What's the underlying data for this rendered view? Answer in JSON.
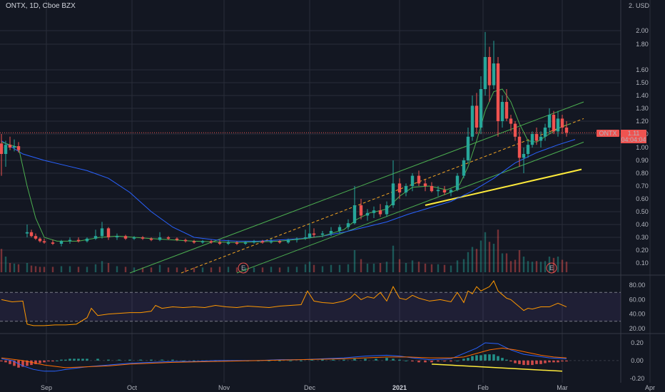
{
  "header": {
    "symbol_title": "ONTX, 1D, Cboe BZX",
    "currency": "2. USD"
  },
  "price_tag": {
    "symbol": "ONTX",
    "value": "1.11",
    "countdown": "04:04:04"
  },
  "event_markers": [
    "E",
    "E"
  ],
  "colors": {
    "background": "#131722",
    "grid": "#2a2e39",
    "up_candle": "#26a69a",
    "down_candle": "#ef5350",
    "channel": "#4caf50",
    "support_line": "#ffeb3b",
    "ma_long": "#2962ff",
    "ma_short": "#4caf50",
    "rsi_line": "#ff9800",
    "rsi_band": "#7e57c2"
  },
  "chart_data": [
    {
      "type": "candlestick",
      "name": "price",
      "y_ticks": [
        "0.10",
        "0.20",
        "0.30",
        "0.40",
        "0.50",
        "0.60",
        "0.70",
        "0.80",
        "0.90",
        "1.00",
        "1.10",
        "1.20",
        "1.30",
        "1.40",
        "1.50",
        "1.60",
        "1.80",
        "2.00"
      ],
      "x_ticks": [
        "Sep",
        "Oct",
        "Nov",
        "Dec",
        "2021",
        "Feb",
        "Mar",
        "Apr"
      ],
      "x_range": [
        0,
        290
      ],
      "x_tick_positions": [
        21,
        61,
        104,
        144,
        186,
        225,
        262,
        303
      ],
      "ohlc": [
        [
          0,
          1.03,
          1.1,
          0.78,
          0.95
        ],
        [
          2,
          0.95,
          1.05,
          0.85,
          1.02
        ],
        [
          4,
          1.02,
          1.08,
          0.98,
          1.0
        ],
        [
          6,
          1.0,
          1.06,
          0.97,
          1.01
        ],
        [
          8,
          1.01,
          1.04,
          0.96,
          0.98
        ],
        [
          12,
          0.33,
          0.4,
          0.3,
          0.34
        ],
        [
          14,
          0.34,
          0.36,
          0.3,
          0.31
        ],
        [
          16,
          0.31,
          0.33,
          0.28,
          0.29
        ],
        [
          18,
          0.29,
          0.3,
          0.26,
          0.27
        ],
        [
          20,
          0.27,
          0.29,
          0.25,
          0.26
        ],
        [
          24,
          0.26,
          0.28,
          0.24,
          0.25
        ],
        [
          28,
          0.25,
          0.28,
          0.23,
          0.27
        ],
        [
          32,
          0.27,
          0.3,
          0.25,
          0.28
        ],
        [
          36,
          0.28,
          0.3,
          0.26,
          0.27
        ],
        [
          40,
          0.27,
          0.3,
          0.26,
          0.29
        ],
        [
          44,
          0.29,
          0.36,
          0.28,
          0.31
        ],
        [
          47,
          0.31,
          0.42,
          0.29,
          0.37
        ],
        [
          50,
          0.37,
          0.38,
          0.28,
          0.3
        ],
        [
          54,
          0.3,
          0.33,
          0.28,
          0.31
        ],
        [
          58,
          0.31,
          0.32,
          0.28,
          0.29
        ],
        [
          62,
          0.29,
          0.31,
          0.28,
          0.3
        ],
        [
          66,
          0.3,
          0.31,
          0.28,
          0.29
        ],
        [
          70,
          0.29,
          0.3,
          0.27,
          0.28
        ],
        [
          74,
          0.28,
          0.34,
          0.27,
          0.3
        ],
        [
          78,
          0.3,
          0.31,
          0.28,
          0.29
        ],
        [
          82,
          0.29,
          0.3,
          0.27,
          0.28
        ],
        [
          86,
          0.28,
          0.29,
          0.26,
          0.27
        ],
        [
          90,
          0.27,
          0.28,
          0.25,
          0.26
        ],
        [
          94,
          0.26,
          0.28,
          0.25,
          0.27
        ],
        [
          98,
          0.27,
          0.28,
          0.25,
          0.26
        ],
        [
          102,
          0.26,
          0.28,
          0.24,
          0.25
        ],
        [
          106,
          0.25,
          0.28,
          0.24,
          0.26
        ],
        [
          110,
          0.26,
          0.27,
          0.24,
          0.25
        ],
        [
          114,
          0.25,
          0.27,
          0.24,
          0.26
        ],
        [
          118,
          0.26,
          0.28,
          0.25,
          0.27
        ],
        [
          122,
          0.27,
          0.28,
          0.25,
          0.26
        ],
        [
          126,
          0.26,
          0.29,
          0.25,
          0.27
        ],
        [
          130,
          0.27,
          0.28,
          0.25,
          0.26
        ],
        [
          134,
          0.26,
          0.29,
          0.25,
          0.28
        ],
        [
          138,
          0.28,
          0.3,
          0.26,
          0.29
        ],
        [
          142,
          0.29,
          0.36,
          0.28,
          0.3
        ],
        [
          144,
          0.3,
          0.41,
          0.29,
          0.33
        ],
        [
          146,
          0.33,
          0.37,
          0.3,
          0.32
        ],
        [
          150,
          0.32,
          0.35,
          0.3,
          0.33
        ],
        [
          154,
          0.33,
          0.38,
          0.31,
          0.35
        ],
        [
          158,
          0.35,
          0.4,
          0.33,
          0.38
        ],
        [
          162,
          0.38,
          0.44,
          0.36,
          0.41
        ],
        [
          165,
          0.41,
          0.7,
          0.4,
          0.55
        ],
        [
          168,
          0.55,
          0.6,
          0.44,
          0.47
        ],
        [
          171,
          0.47,
          0.52,
          0.43,
          0.49
        ],
        [
          174,
          0.49,
          0.54,
          0.45,
          0.51
        ],
        [
          177,
          0.51,
          0.56,
          0.46,
          0.48
        ],
        [
          180,
          0.48,
          0.58,
          0.46,
          0.55
        ],
        [
          183,
          0.55,
          0.9,
          0.53,
          0.72
        ],
        [
          186,
          0.72,
          0.76,
          0.6,
          0.65
        ],
        [
          189,
          0.65,
          0.72,
          0.62,
          0.7
        ],
        [
          192,
          0.7,
          0.8,
          0.66,
          0.78
        ],
        [
          195,
          0.78,
          0.82,
          0.7,
          0.72
        ],
        [
          198,
          0.72,
          0.75,
          0.66,
          0.7
        ],
        [
          201,
          0.7,
          0.73,
          0.65,
          0.66
        ],
        [
          204,
          0.66,
          0.7,
          0.62,
          0.67
        ],
        [
          207,
          0.67,
          0.7,
          0.63,
          0.65
        ],
        [
          210,
          0.65,
          0.68,
          0.62,
          0.67
        ],
        [
          213,
          0.67,
          0.8,
          0.66,
          0.78
        ],
        [
          216,
          0.78,
          0.92,
          0.76,
          0.9
        ],
        [
          218,
          0.9,
          1.15,
          0.88,
          1.08
        ],
        [
          220,
          1.08,
          1.4,
          1.05,
          1.32
        ],
        [
          222,
          1.32,
          1.42,
          1.1,
          1.15
        ],
        [
          224,
          1.15,
          1.55,
          1.1,
          1.45
        ],
        [
          226,
          1.45,
          1.98,
          1.4,
          1.7
        ],
        [
          228,
          1.7,
          1.78,
          1.35,
          1.48
        ],
        [
          230,
          1.48,
          1.85,
          1.45,
          1.65
        ],
        [
          232,
          1.65,
          1.7,
          1.08,
          1.2
        ],
        [
          234,
          1.2,
          1.4,
          1.15,
          1.35
        ],
        [
          236,
          1.35,
          1.45,
          1.2,
          1.22
        ],
        [
          238,
          1.22,
          1.25,
          1.12,
          1.18
        ],
        [
          240,
          1.18,
          1.2,
          1.05,
          1.08
        ],
        [
          242,
          1.08,
          1.15,
          0.85,
          0.92
        ],
        [
          244,
          0.92,
          1.0,
          0.8,
          0.95
        ],
        [
          246,
          0.95,
          1.05,
          0.92,
          1.02
        ],
        [
          248,
          1.02,
          1.12,
          1.0,
          1.1
        ],
        [
          250,
          1.1,
          1.15,
          1.02,
          1.05
        ],
        [
          252,
          1.05,
          1.12,
          1.0,
          1.08
        ],
        [
          254,
          1.08,
          1.18,
          1.05,
          1.15
        ],
        [
          256,
          1.15,
          1.3,
          1.1,
          1.25
        ],
        [
          258,
          1.25,
          1.28,
          1.1,
          1.12
        ],
        [
          260,
          1.12,
          1.28,
          1.08,
          1.22
        ],
        [
          262,
          1.22,
          1.25,
          1.1,
          1.15
        ],
        [
          264,
          1.15,
          1.2,
          1.08,
          1.11
        ]
      ]
    },
    {
      "type": "line",
      "name": "rsi",
      "y_ticks": [
        "20.00",
        "40.00",
        "60.00",
        "80.00"
      ],
      "y_range": [
        15,
        90
      ],
      "bands": [
        30,
        70
      ],
      "x": [
        0,
        5,
        10,
        12,
        15,
        20,
        25,
        30,
        35,
        40,
        42,
        45,
        50,
        55,
        60,
        65,
        70,
        72,
        75,
        80,
        85,
        90,
        95,
        100,
        105,
        110,
        115,
        120,
        125,
        130,
        135,
        140,
        143,
        146,
        150,
        155,
        160,
        163,
        165,
        168,
        171,
        174,
        177,
        180,
        183,
        186,
        189,
        192,
        195,
        200,
        205,
        210,
        213,
        216,
        218,
        220,
        222,
        224,
        226,
        228,
        230,
        232,
        234,
        236,
        238,
        240,
        242,
        244,
        246,
        248,
        252,
        256,
        260,
        264
      ],
      "values": [
        60,
        57,
        58,
        26,
        24,
        24,
        25,
        25,
        26,
        35,
        48,
        38,
        40,
        41,
        42,
        42,
        44,
        52,
        48,
        50,
        49,
        50,
        49,
        52,
        50,
        49,
        51,
        50,
        49,
        51,
        52,
        53,
        72,
        58,
        56,
        55,
        58,
        62,
        68,
        60,
        64,
        62,
        70,
        58,
        78,
        62,
        60,
        66,
        62,
        58,
        60,
        57,
        70,
        56,
        72,
        68,
        78,
        72,
        75,
        78,
        86,
        72,
        67,
        62,
        60,
        55,
        50,
        45,
        48,
        47,
        50,
        50,
        55,
        50
      ]
    },
    {
      "type": "bar",
      "name": "macd",
      "y_ticks": [
        "-0.20",
        "0.00",
        "0.20"
      ],
      "y_range": [
        -0.25,
        0.28
      ],
      "series": [
        {
          "name": "",
          "x": [
            0,
            5,
            10,
            15,
            20,
            25,
            30,
            40,
            50,
            60,
            70,
            80,
            90,
            100,
            110,
            120,
            130,
            140,
            150,
            160,
            170,
            180,
            186,
            192,
            200,
            210,
            216,
            222,
            226,
            232,
            238,
            244,
            250,
            256,
            264
          ],
          "values": [
            0.02,
            0.0,
            -0.06,
            -0.1,
            -0.12,
            -0.12,
            -0.1,
            -0.07,
            -0.05,
            -0.03,
            -0.02,
            -0.01,
            -0.01,
            0.0,
            0.0,
            0.0,
            0.01,
            0.01,
            0.02,
            0.03,
            0.05,
            0.06,
            0.05,
            0.03,
            0.01,
            0.02,
            0.08,
            0.14,
            0.2,
            0.19,
            0.12,
            0.07,
            0.05,
            0.03,
            0.02
          ]
        },
        {
          "name": "",
          "x": [
            0,
            10,
            20,
            30,
            40,
            50,
            60,
            80,
            100,
            120,
            140,
            160,
            170,
            180,
            190,
            200,
            210,
            216,
            222,
            228,
            234,
            240,
            246,
            252,
            258,
            264
          ],
          "values": [
            0.03,
            0.0,
            -0.05,
            -0.08,
            -0.07,
            -0.06,
            -0.04,
            -0.02,
            -0.01,
            0.0,
            0.01,
            0.02,
            0.03,
            0.04,
            0.04,
            0.03,
            0.03,
            0.04,
            0.08,
            0.12,
            0.14,
            0.12,
            0.09,
            0.06,
            0.04,
            0.03
          ]
        }
      ],
      "histogram_x": [
        0,
        2,
        4,
        6,
        8,
        10,
        12,
        14,
        16,
        18,
        20,
        22,
        24,
        26,
        28,
        30,
        32,
        34,
        36,
        38,
        40,
        45,
        50,
        55,
        60,
        65,
        70,
        75,
        80,
        85,
        90,
        95,
        100,
        105,
        110,
        115,
        120,
        125,
        130,
        135,
        140,
        145,
        150,
        155,
        160,
        165,
        170,
        175,
        180,
        183,
        186,
        189,
        192,
        195,
        198,
        201,
        204,
        207,
        210,
        213,
        216,
        218,
        220,
        222,
        224,
        226,
        228,
        230,
        232,
        234,
        236,
        238,
        240,
        242,
        244,
        246,
        248,
        250,
        252,
        254,
        256,
        258,
        260,
        262,
        264
      ],
      "histogram": [
        -0.01,
        -0.02,
        -0.04,
        -0.06,
        -0.08,
        -0.07,
        -0.06,
        -0.05,
        -0.04,
        -0.03,
        -0.02,
        -0.01,
        -0.01,
        0.0,
        0.01,
        0.01,
        0.02,
        0.02,
        0.02,
        0.02,
        0.02,
        0.02,
        0.01,
        0.01,
        0.01,
        0.01,
        0.01,
        0.01,
        0.01,
        0.0,
        0.0,
        0.0,
        0.0,
        0.0,
        0.0,
        0.0,
        0.0,
        0.0,
        0.0,
        0.0,
        0.0,
        0.01,
        0.01,
        0.01,
        0.01,
        0.02,
        0.02,
        0.02,
        0.03,
        0.02,
        0.01,
        0.0,
        -0.01,
        -0.02,
        -0.02,
        -0.02,
        -0.01,
        -0.01,
        -0.01,
        0.0,
        0.02,
        0.03,
        0.05,
        0.06,
        0.06,
        0.07,
        0.07,
        0.07,
        0.05,
        0.03,
        0.01,
        -0.01,
        -0.03,
        -0.04,
        -0.05,
        -0.05,
        -0.05,
        -0.04,
        -0.04,
        -0.03,
        -0.02,
        -0.02,
        -0.02,
        -0.01,
        -0.01
      ]
    }
  ]
}
